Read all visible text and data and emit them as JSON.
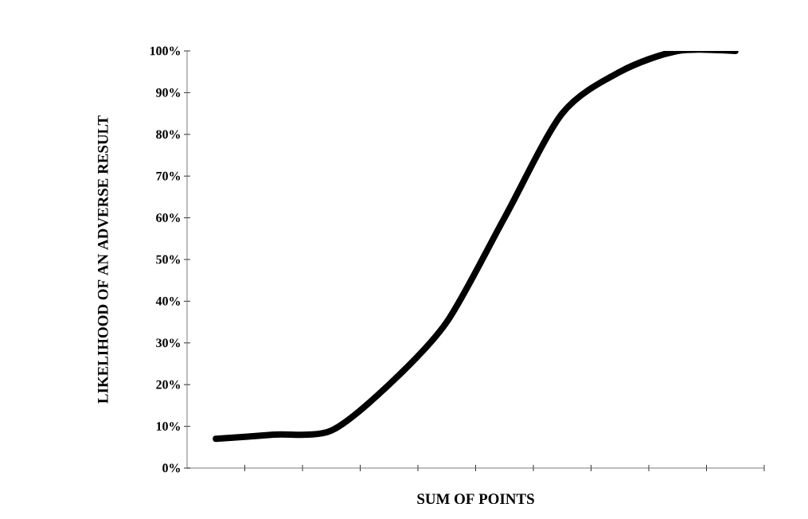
{
  "chart_data": {
    "type": "line",
    "xlabel": "SUM OF POINTS",
    "ylabel": "LIKELIHOOD OF AN ADVERSE RESULT",
    "categories": [
      null,
      null,
      null,
      null,
      null,
      null,
      null,
      null,
      null,
      null
    ],
    "series": [
      {
        "color": "#000000",
        "values": [
          7,
          8,
          9,
          20,
          35,
          60,
          85,
          95,
          100,
          100
        ]
      }
    ],
    "ylim": [
      0,
      100
    ],
    "yticks": [
      {
        "value": 0,
        "label": "0%"
      },
      {
        "value": 10,
        "label": "10%"
      },
      {
        "value": 20,
        "label": "20%"
      },
      {
        "value": 30,
        "label": "30%"
      },
      {
        "value": 40,
        "label": "40%"
      },
      {
        "value": 50,
        "label": "50%"
      },
      {
        "value": 60,
        "label": "60%"
      },
      {
        "value": 70,
        "label": "70%"
      },
      {
        "value": 80,
        "label": "80%"
      },
      {
        "value": 90,
        "label": "90%"
      },
      {
        "value": 100,
        "label": "100%"
      }
    ],
    "tick_labels": "y",
    "grid": false,
    "marker": "none",
    "line_style": "solid"
  }
}
